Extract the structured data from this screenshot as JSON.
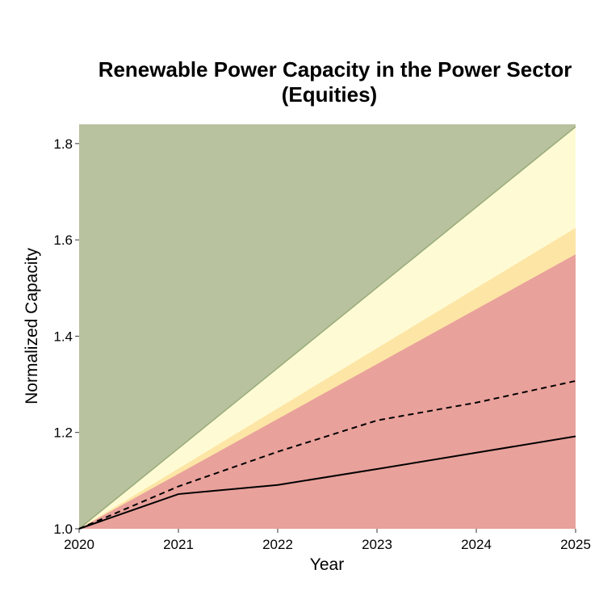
{
  "chart_data": {
    "type": "area",
    "title": "Renewable Power Capacity in the Power Sector",
    "subtitle": "(Equities)",
    "xlabel": "Year",
    "ylabel": "Normalized Capacity",
    "x": [
      2020,
      2021,
      2022,
      2023,
      2024,
      2025
    ],
    "xlim": [
      2020,
      2025
    ],
    "ylim": [
      1.0,
      1.84
    ],
    "x_ticks": [
      "2020",
      "2021",
      "2022",
      "2023",
      "2024",
      "2025"
    ],
    "y_ticks": [
      "1.0",
      "1.2",
      "1.4",
      "1.6",
      "1.8"
    ],
    "grid": false,
    "legend": "none",
    "bands": [
      {
        "color": "#e9a19b",
        "upper": [
          1.0,
          1.114,
          1.228,
          1.342,
          1.456,
          1.57
        ]
      },
      {
        "color": "#fde5a6",
        "upper": [
          1.0,
          1.125,
          1.25,
          1.375,
          1.5,
          1.625
        ]
      },
      {
        "color": "#fefbd4",
        "upper": [
          1.0,
          1.167,
          1.334,
          1.501,
          1.668,
          1.835
        ]
      },
      {
        "color": "#b8c29f",
        "upper": [
          1.84,
          1.84,
          1.84,
          1.84,
          1.84,
          1.84
        ]
      }
    ],
    "band_edge_color": "#9aab7a",
    "series": [
      {
        "style": "solid",
        "color": "#000000",
        "values": [
          1.0,
          1.072,
          1.091,
          1.124,
          1.158,
          1.192
        ]
      },
      {
        "style": "dashed",
        "color": "#000000",
        "values": [
          1.0,
          1.088,
          1.16,
          1.225,
          1.262,
          1.307
        ]
      }
    ]
  }
}
